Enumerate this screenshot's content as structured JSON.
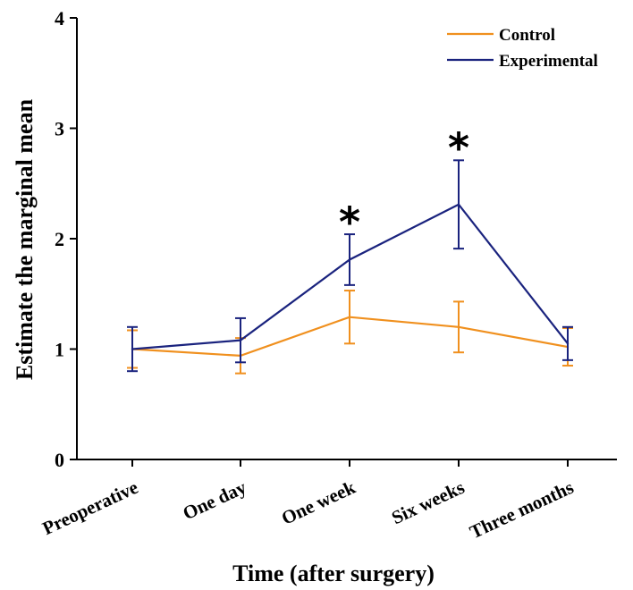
{
  "chart_data": {
    "type": "line",
    "xlabel": "Time (after surgery)",
    "ylabel": "Estimate the marginal mean",
    "categories": [
      "Preoperative",
      "One day",
      "One week",
      "Six weeks",
      "Three months"
    ],
    "ylim": [
      0,
      4
    ],
    "yticks": [
      "0",
      "1",
      "2",
      "3",
      "4"
    ],
    "grid": false,
    "legend_position": "top-right",
    "series": [
      {
        "name": "Control",
        "color": "#F0901E",
        "values": [
          1.0,
          0.94,
          1.29,
          1.2,
          1.02
        ],
        "error": [
          0.17,
          0.16,
          0.24,
          0.23,
          0.17
        ]
      },
      {
        "name": "Experimental",
        "color": "#1A237E",
        "values": [
          1.0,
          1.08,
          1.81,
          2.31,
          1.05
        ],
        "error": [
          0.2,
          0.2,
          0.23,
          0.4,
          0.15
        ]
      }
    ],
    "annotations": [
      {
        "text": "*",
        "category": "One week",
        "y": 2.2
      },
      {
        "text": "*",
        "category": "Six weeks",
        "y": 2.87
      }
    ]
  }
}
